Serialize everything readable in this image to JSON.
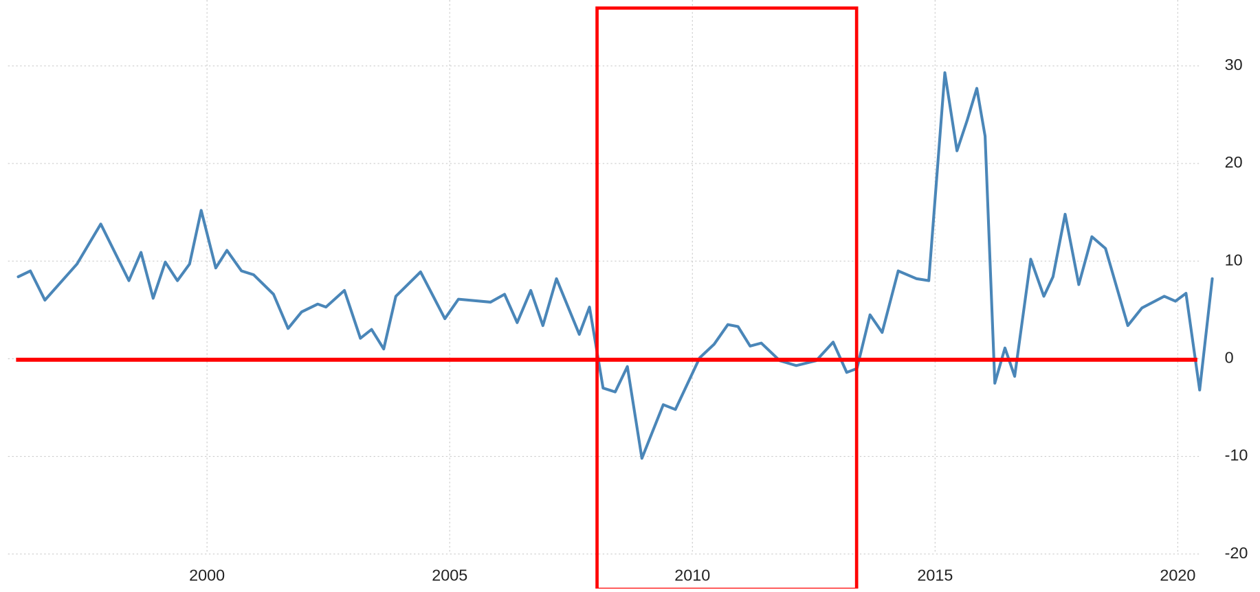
{
  "chart_data": {
    "type": "line",
    "x": [
      1996.11,
      1996.36,
      1996.66,
      1997.32,
      1997.81,
      1998.39,
      1998.64,
      1998.89,
      1999.14,
      1999.39,
      1999.64,
      1999.88,
      2000.18,
      2000.41,
      2000.71,
      2000.96,
      2001.37,
      2001.67,
      2001.95,
      2002.28,
      2002.45,
      2002.83,
      2003.16,
      2003.39,
      2003.64,
      2003.89,
      2004.4,
      2004.9,
      2005.18,
      2005.84,
      2006.13,
      2006.39,
      2006.67,
      2006.92,
      2007.2,
      2007.67,
      2007.88,
      2008.16,
      2008.41,
      2008.66,
      2008.96,
      2009.4,
      2009.65,
      2010.15,
      2010.45,
      2010.73,
      2010.94,
      2011.19,
      2011.42,
      2011.8,
      2012.14,
      2012.55,
      2012.9,
      2013.18,
      2013.39,
      2013.66,
      2013.91,
      2014.24,
      2014.62,
      2014.87,
      2015.2,
      2015.45,
      2015.66,
      2015.86,
      2016.03,
      2016.23,
      2016.44,
      2016.64,
      2016.97,
      2017.24,
      2017.43,
      2017.68,
      2017.96,
      2018.23,
      2018.51,
      2018.97,
      2019.26,
      2019.72,
      2019.95,
      2020.17,
      2020.45,
      2020.71
    ],
    "values": [
      8.4,
      9.0,
      6.0,
      9.7,
      13.8,
      8.0,
      10.9,
      6.2,
      9.9,
      8.0,
      9.7,
      15.2,
      9.3,
      11.1,
      9.0,
      8.6,
      6.6,
      3.1,
      4.8,
      5.6,
      5.3,
      7.0,
      2.1,
      3.0,
      1.0,
      6.4,
      8.9,
      4.1,
      6.1,
      5.8,
      6.6,
      3.7,
      7.0,
      3.4,
      8.2,
      2.5,
      5.3,
      -3.0,
      -3.4,
      -0.8,
      -10.2,
      -4.7,
      -5.2,
      0.1,
      1.5,
      3.5,
      3.3,
      1.3,
      1.6,
      -0.2,
      -0.7,
      -0.2,
      1.7,
      -1.4,
      -1.0,
      4.5,
      2.7,
      9.0,
      8.2,
      8.0,
      29.3,
      21.3,
      24.4,
      27.7,
      22.8,
      -2.5,
      1.1,
      -1.8,
      10.2,
      6.4,
      8.4,
      14.8,
      7.6,
      12.5,
      11.3,
      3.4,
      5.2,
      6.4,
      5.9,
      6.7,
      -3.2,
      8.2
    ],
    "color": "#4a86b8",
    "xlim": [
      1995.9,
      2020.8
    ],
    "xticks": [
      2000,
      2005,
      2010,
      2015,
      2020
    ],
    "ylim": [
      -20,
      30
    ],
    "yticks": [
      -20,
      -10,
      0,
      10,
      20,
      30
    ],
    "grid": true
  }
}
